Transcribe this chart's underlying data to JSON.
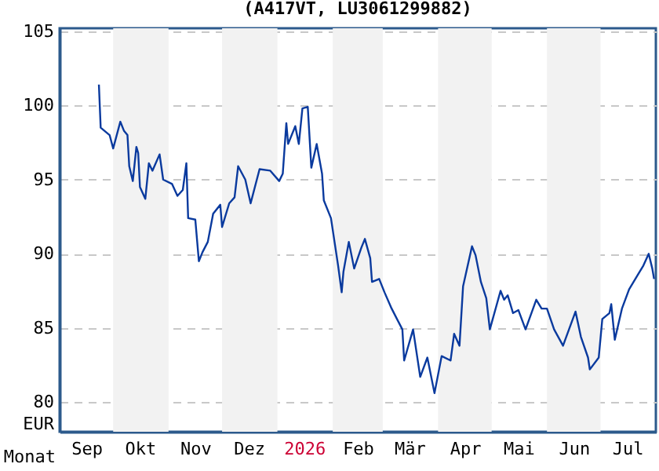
{
  "chart_data": {
    "type": "line",
    "title": "(A417VT, LU3061299882)",
    "xlabel": "Monat",
    "ylabel": "EUR",
    "x": [
      "2025-09-23",
      "2025-09-24",
      "2025-09-29",
      "2025-10-01",
      "2025-10-05",
      "2025-10-07",
      "2025-10-09",
      "2025-10-10",
      "2025-10-12",
      "2025-10-14",
      "2025-10-15",
      "2025-10-16",
      "2025-10-19",
      "2025-10-21",
      "2025-10-23",
      "2025-10-27",
      "2025-10-29",
      "2025-11-03",
      "2025-11-06",
      "2025-11-09",
      "2025-11-11",
      "2025-11-12",
      "2025-11-16",
      "2025-11-18",
      "2025-11-20",
      "2025-11-23",
      "2025-11-26",
      "2025-11-30",
      "2025-12-01",
      "2025-12-05",
      "2025-12-08",
      "2025-12-10",
      "2025-12-14",
      "2025-12-17",
      "2025-12-22",
      "2025-12-28",
      "2026-01-02",
      "2026-01-04",
      "2026-01-06",
      "2026-01-07",
      "2026-01-11",
      "2026-01-13",
      "2026-01-15",
      "2026-01-18",
      "2026-01-20",
      "2026-01-23",
      "2026-01-26",
      "2026-01-27",
      "2026-01-31",
      "2026-02-02",
      "2026-02-04",
      "2026-02-06",
      "2026-02-07",
      "2026-02-10",
      "2026-02-13",
      "2026-02-17",
      "2026-02-19",
      "2026-02-22",
      "2026-02-23",
      "2026-02-27",
      "2026-03-02",
      "2026-03-06",
      "2026-03-12",
      "2026-03-13",
      "2026-03-18",
      "2026-03-22",
      "2026-03-26",
      "2026-03-30",
      "2026-04-03",
      "2026-04-08",
      "2026-04-10",
      "2026-04-13",
      "2026-04-15",
      "2026-04-20",
      "2026-04-22",
      "2026-04-25",
      "2026-04-28",
      "2026-04-30",
      "2026-05-06",
      "2026-05-08",
      "2026-05-10",
      "2026-05-13",
      "2026-05-16",
      "2026-05-20",
      "2026-05-26",
      "2026-05-29",
      "2026-06-01",
      "2026-06-05",
      "2026-06-10",
      "2026-06-17",
      "2026-06-20",
      "2026-06-24",
      "2026-06-25",
      "2026-06-30",
      "2026-07-02",
      "2026-07-06",
      "2026-07-07",
      "2026-07-09",
      "2026-07-13",
      "2026-07-17",
      "2026-07-22",
      "2026-07-25",
      "2026-07-28",
      "2026-07-30",
      "2026-07-31"
    ],
    "series": [
      {
        "color": "#0a3a9e",
        "values": [
          101.4,
          98.5,
          98.0,
          97.1,
          98.9,
          98.3,
          98.0,
          95.9,
          94.9,
          97.2,
          96.8,
          94.5,
          93.7,
          96.1,
          95.6,
          96.7,
          95.0,
          94.7,
          93.9,
          94.3,
          96.1,
          92.4,
          92.3,
          89.5,
          90.1,
          90.8,
          92.7,
          93.3,
          91.8,
          93.4,
          93.8,
          95.9,
          95.0,
          93.4,
          95.7,
          95.6,
          94.9,
          95.4,
          98.8,
          97.4,
          98.6,
          97.4,
          99.8,
          99.9,
          95.8,
          97.4,
          95.4,
          93.6,
          92.4,
          90.8,
          89.2,
          87.4,
          88.8,
          90.8,
          89.0,
          90.4,
          91.0,
          89.7,
          88.1,
          88.3,
          87.4,
          86.3,
          84.9,
          82.8,
          84.9,
          81.7,
          83.0,
          80.6,
          83.1,
          82.8,
          84.6,
          83.8,
          87.8,
          90.5,
          89.9,
          88.1,
          87.0,
          84.9,
          87.5,
          86.9,
          87.2,
          86.0,
          86.2,
          84.9,
          86.9,
          86.3,
          86.3,
          84.9,
          83.8,
          86.1,
          84.4,
          83.0,
          82.2,
          83.0,
          85.6,
          86.0,
          86.6,
          84.2,
          86.3,
          87.6,
          88.6,
          89.2,
          90.0,
          89.0,
          88.3
        ]
      }
    ],
    "xlim": [
      "2025-09-01",
      "2026-08-01"
    ],
    "xticks": [
      {
        "value": "2025-09-16",
        "label": "Sep"
      },
      {
        "value": "2025-10-16",
        "label": "Okt"
      },
      {
        "value": "2025-11-16",
        "label": "Nov"
      },
      {
        "value": "2025-12-16",
        "label": "Dez"
      },
      {
        "value": "2026-01-16",
        "label": "2026"
      },
      {
        "value": "2026-02-15",
        "label": "Feb"
      },
      {
        "value": "2026-03-16",
        "label": "Mär"
      },
      {
        "value": "2026-04-16",
        "label": "Apr"
      },
      {
        "value": "2026-05-16",
        "label": "Mai"
      },
      {
        "value": "2026-06-16",
        "label": "Jun"
      },
      {
        "value": "2026-07-16",
        "label": "Jul"
      }
    ],
    "ylim": [
      78,
      105.2
    ],
    "yticks": [
      80,
      85,
      90,
      95,
      100,
      105
    ],
    "bands": [
      {
        "axis": "x",
        "from": "2025-10-01",
        "to": "2025-11-01",
        "color": "#f2f2f2"
      },
      {
        "axis": "x",
        "from": "2025-12-01",
        "to": "2026-01-01",
        "color": "#f2f2f2"
      },
      {
        "axis": "x",
        "from": "2026-02-01",
        "to": "2026-03-01",
        "color": "#f2f2f2"
      },
      {
        "axis": "x",
        "from": "2026-04-01",
        "to": "2026-05-01",
        "color": "#f2f2f2"
      },
      {
        "axis": "x",
        "from": "2026-06-01",
        "to": "2026-07-01",
        "color": "#f2f2f2"
      }
    ],
    "grid": "y"
  }
}
